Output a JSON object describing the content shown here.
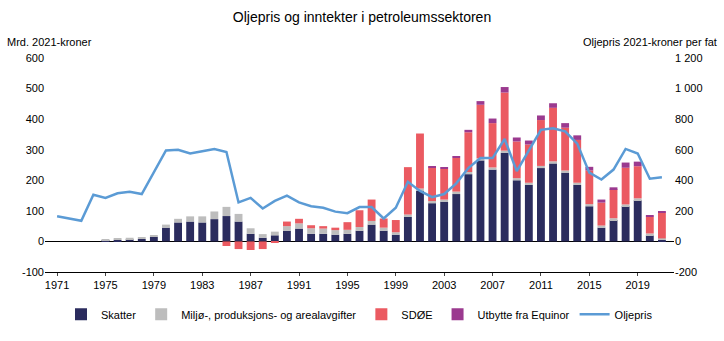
{
  "chart_data": {
    "type": "bar",
    "title": "Oljepris og inntekter i petroleumssektoren",
    "y_label": "Mrd. 2021-kroner",
    "y2_label": "Oljepris 2021-kroner per fat",
    "x": [
      1971,
      1972,
      1973,
      1974,
      1975,
      1976,
      1977,
      1978,
      1979,
      1980,
      1981,
      1982,
      1983,
      1984,
      1985,
      1986,
      1987,
      1988,
      1989,
      1990,
      1991,
      1992,
      1993,
      1994,
      1995,
      1996,
      1997,
      1998,
      1999,
      2000,
      2001,
      2002,
      2003,
      2004,
      2005,
      2006,
      2007,
      2008,
      2009,
      2010,
      2011,
      2012,
      2013,
      2014,
      2015,
      2016,
      2017,
      2018,
      2019,
      2020,
      2021
    ],
    "xlim": [
      1970,
      2022
    ],
    "xticks": [
      1971,
      1975,
      1979,
      1983,
      1987,
      1991,
      1995,
      1999,
      2003,
      2007,
      2011,
      2015,
      2019
    ],
    "ylim": [
      -100,
      600
    ],
    "yticks": [
      -100,
      0,
      100,
      200,
      300,
      400,
      500,
      600
    ],
    "y2lim": [
      -200,
      1200
    ],
    "y2ticks": [
      -200,
      0,
      200,
      400,
      600,
      800,
      {
        "value": 1000,
        "label": "1 000"
      },
      {
        "value": 1200,
        "label": "1 200"
      }
    ],
    "stacked": true,
    "grid": false,
    "legend": "bottom",
    "series": [
      {
        "name": "Skatter",
        "type": "bar",
        "color": "#2b2c5e",
        "values": [
          0,
          0,
          0,
          0,
          2,
          5,
          7,
          8,
          15,
          45,
          62,
          65,
          62,
          73,
          83,
          65,
          25,
          12,
          20,
          35,
          42,
          25,
          25,
          22,
          25,
          35,
          55,
          35,
          22,
          80,
          165,
          125,
          130,
          155,
          220,
          265,
          235,
          290,
          200,
          185,
          240,
          255,
          225,
          185,
          115,
          45,
          70,
          115,
          135,
          20,
          5
        ]
      },
      {
        "name": "Miljø-, produksjons- og arealavgifter",
        "type": "bar",
        "color": "#bdbdbd",
        "values": [
          0,
          0,
          0,
          0,
          3,
          5,
          5,
          6,
          6,
          10,
          12,
          17,
          20,
          25,
          30,
          25,
          18,
          12,
          12,
          15,
          17,
          18,
          17,
          15,
          13,
          12,
          12,
          10,
          8,
          8,
          8,
          7,
          7,
          8,
          7,
          7,
          7,
          7,
          7,
          7,
          7,
          7,
          7,
          7,
          7,
          7,
          6,
          6,
          6,
          6,
          5
        ]
      },
      {
        "name": "SDØE",
        "type": "bar",
        "color": "#eb5a61",
        "values": [
          0,
          0,
          0,
          0,
          0,
          0,
          0,
          0,
          0,
          0,
          0,
          0,
          0,
          0,
          -15,
          -25,
          -28,
          -25,
          -5,
          15,
          15,
          10,
          8,
          8,
          25,
          55,
          70,
          30,
          40,
          155,
          180,
          110,
          100,
          110,
          130,
          175,
          145,
          190,
          120,
          125,
          150,
          175,
          140,
          140,
          110,
          75,
          95,
          120,
          105,
          55,
          85
        ]
      },
      {
        "name": "Utbytte fra Equinor",
        "type": "bar",
        "color": "#9b3a8f",
        "values": [
          0,
          0,
          0,
          0,
          0,
          0,
          0,
          0,
          0,
          0,
          0,
          0,
          0,
          0,
          0,
          0,
          0,
          0,
          0,
          0,
          0,
          0,
          0,
          0,
          0,
          0,
          0,
          0,
          0,
          0,
          0,
          3,
          5,
          6,
          8,
          12,
          15,
          18,
          13,
          13,
          15,
          15,
          15,
          15,
          12,
          10,
          6,
          17,
          15,
          5,
          3
        ]
      },
      {
        "name": "Oljepris",
        "type": "line",
        "axis": "y2",
        "color": "#5b9bd5",
        "values": [
          165,
          150,
          135,
          305,
          285,
          315,
          325,
          310,
          450,
          595,
          600,
          575,
          590,
          605,
          585,
          255,
          285,
          215,
          265,
          300,
          255,
          230,
          220,
          195,
          185,
          225,
          225,
          150,
          220,
          390,
          330,
          290,
          310,
          380,
          480,
          545,
          545,
          670,
          460,
          600,
          730,
          740,
          720,
          640,
          450,
          405,
          470,
          605,
          575,
          410,
          420
        ]
      }
    ]
  }
}
